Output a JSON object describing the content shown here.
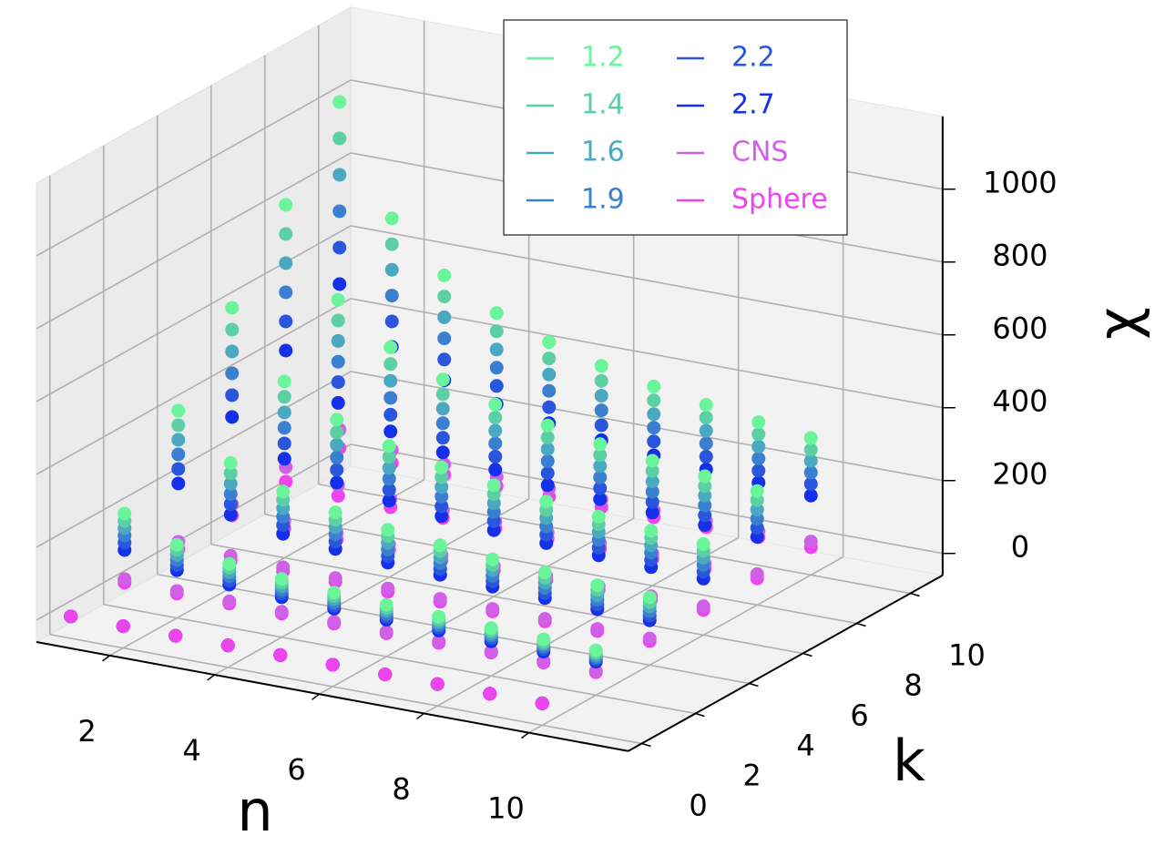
{
  "chart_data": {
    "type": "scatter3d",
    "xlabel": "n",
    "ylabel": "k",
    "zlabel": "χ",
    "n": [
      1,
      2,
      3,
      4,
      5,
      6,
      7,
      8,
      9,
      10
    ],
    "k": [
      0,
      2,
      4,
      6,
      8,
      10
    ],
    "xlim": [
      0.6,
      11.9
    ],
    "ylim": [
      -0.5,
      11.2
    ],
    "zlim": [
      -60,
      1200
    ],
    "xticks": [
      2,
      4,
      6,
      8,
      10
    ],
    "yticks": [
      0,
      2,
      4,
      6,
      8,
      10
    ],
    "zticks": [
      0,
      200,
      400,
      600,
      800,
      1000
    ],
    "grid": true,
    "legend": "upper center",
    "series": [
      {
        "name": "1.2",
        "color": "#6af59a",
        "values": [
          [
            0,
            0,
            0,
            0,
            0,
            0,
            0,
            0,
            0,
            0
          ],
          [
            200,
            141,
            115,
            100,
            89,
            82,
            76,
            71,
            67,
            63
          ],
          [
            400,
            283,
            231,
            200,
            179,
            163,
            151,
            141,
            133,
            126
          ],
          [
            600,
            424,
            346,
            300,
            268,
            245,
            227,
            212,
            200,
            190
          ],
          [
            800,
            566,
            462,
            400,
            358,
            327,
            302,
            283,
            267,
            253
          ],
          [
            1000,
            707,
            577,
            500,
            447,
            408,
            378,
            354,
            333,
            316
          ]
        ]
      },
      {
        "name": "1.4",
        "color": "#5ccfa5",
        "values": [
          [
            0,
            0,
            0,
            0,
            0,
            0,
            0,
            0,
            0,
            0
          ],
          [
            180,
            127,
            104,
            90,
            80,
            74,
            68,
            64,
            60,
            57
          ],
          [
            360,
            255,
            208,
            180,
            161,
            147,
            136,
            127,
            120,
            113
          ],
          [
            540,
            382,
            311,
            270,
            241,
            221,
            204,
            191,
            180,
            171
          ],
          [
            720,
            509,
            416,
            360,
            322,
            294,
            272,
            255,
            240,
            228
          ],
          [
            900,
            636,
            519,
            450,
            402,
            367,
            340,
            319,
            300,
            284
          ]
        ]
      },
      {
        "name": "1.6",
        "color": "#4aa8c0",
        "values": [
          [
            0,
            0,
            0,
            0,
            0,
            0,
            0,
            0,
            0,
            0
          ],
          [
            160,
            113,
            92,
            80,
            71,
            66,
            61,
            57,
            54,
            50
          ],
          [
            320,
            226,
            185,
            160,
            143,
            130,
            121,
            113,
            106,
            101
          ],
          [
            480,
            339,
            277,
            240,
            214,
            196,
            182,
            170,
            160,
            152
          ],
          [
            640,
            453,
            370,
            320,
            286,
            262,
            242,
            226,
            214,
            202
          ],
          [
            800,
            566,
            462,
            400,
            358,
            326,
            302,
            283,
            266,
            253
          ]
        ]
      },
      {
        "name": "1.9",
        "color": "#3a7fd0",
        "values": [
          [
            0,
            0,
            0,
            0,
            0,
            0,
            0,
            0,
            0,
            0
          ],
          [
            140,
            99,
            81,
            70,
            62,
            57,
            53,
            50,
            47,
            44
          ],
          [
            280,
            198,
            162,
            140,
            125,
            114,
            106,
            99,
            93,
            88
          ],
          [
            420,
            297,
            242,
            210,
            188,
            172,
            159,
            148,
            140,
            133
          ],
          [
            560,
            396,
            323,
            280,
            251,
            229,
            211,
            198,
            187,
            177
          ],
          [
            700,
            495,
            404,
            350,
            313,
            286,
            265,
            248,
            233,
            221
          ]
        ]
      },
      {
        "name": "2.2",
        "color": "#2a55dd",
        "values": [
          [
            0,
            0,
            0,
            0,
            0,
            0,
            0,
            0,
            0,
            0
          ],
          [
            120,
            85,
            69,
            60,
            53,
            49,
            46,
            43,
            40,
            38
          ],
          [
            240,
            170,
            139,
            120,
            107,
            98,
            91,
            85,
            80,
            76
          ],
          [
            360,
            254,
            208,
            180,
            161,
            147,
            136,
            127,
            120,
            114
          ],
          [
            480,
            340,
            277,
            240,
            215,
            196,
            181,
            170,
            160,
            152
          ],
          [
            600,
            424,
            346,
            300,
            268,
            245,
            227,
            212,
            200,
            190
          ]
        ]
      },
      {
        "name": "2.7",
        "color": "#1530e8",
        "values": [
          [
            0,
            0,
            0,
            0,
            0,
            0,
            0,
            0,
            0,
            0
          ],
          [
            100,
            71,
            58,
            50,
            45,
            41,
            38,
            35,
            33,
            32
          ],
          [
            200,
            141,
            115,
            100,
            89,
            82,
            76,
            71,
            67,
            63
          ],
          [
            300,
            212,
            173,
            150,
            134,
            122,
            113,
            106,
            100,
            95
          ],
          [
            400,
            283,
            231,
            200,
            179,
            163,
            151,
            141,
            133,
            127
          ],
          [
            500,
            354,
            289,
            250,
            224,
            204,
            189,
            177,
            167,
            158
          ]
        ]
      },
      {
        "name": "CNS",
        "color": "#d060e8",
        "values": [
          [
            0,
            0,
            0,
            0,
            0,
            0,
            0,
            0,
            0,
            0
          ],
          [
            20,
            14,
            12,
            10,
            9,
            8,
            8,
            7,
            7,
            6
          ],
          [
            40,
            28,
            23,
            20,
            18,
            16,
            15,
            14,
            13,
            13
          ],
          [
            60,
            42,
            35,
            30,
            27,
            24,
            23,
            21,
            20,
            19
          ],
          [
            80,
            57,
            46,
            40,
            36,
            33,
            30,
            28,
            27,
            25
          ],
          [
            100,
            71,
            58,
            50,
            45,
            41,
            38,
            35,
            33,
            32
          ]
        ]
      },
      {
        "name": "Sphere",
        "color": "#ee44ee",
        "values": [
          [
            0,
            0,
            0,
            0,
            0,
            0,
            0,
            0,
            0,
            0
          ],
          [
            10,
            7,
            6,
            5,
            4,
            4,
            4,
            4,
            3,
            3
          ],
          [
            20,
            14,
            12,
            10,
            9,
            8,
            8,
            7,
            7,
            6
          ],
          [
            30,
            21,
            17,
            15,
            13,
            12,
            11,
            11,
            10,
            9
          ],
          [
            40,
            28,
            23,
            20,
            18,
            16,
            15,
            14,
            13,
            13
          ],
          [
            50,
            35,
            29,
            25,
            22,
            20,
            19,
            18,
            17,
            16
          ]
        ]
      }
    ]
  }
}
